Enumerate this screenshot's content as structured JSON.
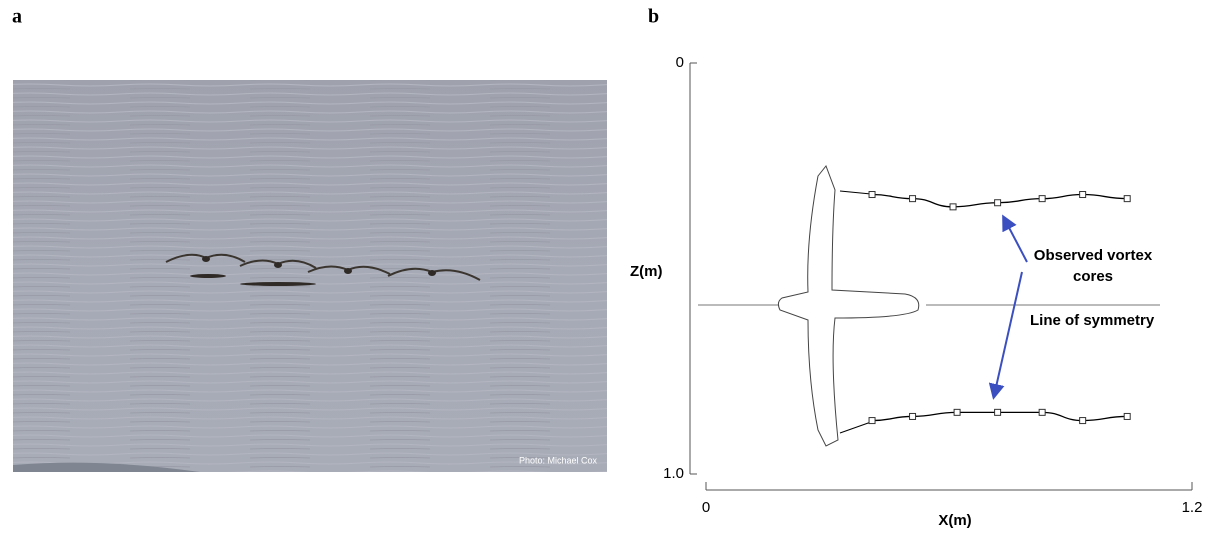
{
  "panel_labels": {
    "a": "a",
    "b": "b"
  },
  "photo_credit": "Photo: Michael Cox",
  "chart_data": {
    "type": "scatter",
    "xlabel": "X(m)",
    "ylabel": "Z(m)",
    "xlim": [
      0,
      1.2
    ],
    "ylim": [
      0,
      1
    ],
    "y_inverted": true,
    "xticks": [
      0,
      1.2
    ],
    "yticks": [
      0,
      {
        "value": 1,
        "label": "1.0"
      }
    ],
    "annotations": [
      "Observed vortex cores",
      "Line of symmetry"
    ],
    "series": [
      {
        "x": [
          0.41,
          0.51,
          0.61,
          0.72,
          0.83,
          0.93,
          1.04
        ],
        "values": [
          0.32,
          0.33,
          0.35,
          0.34,
          0.33,
          0.32,
          0.33
        ]
      },
      {
        "x": [
          0.41,
          0.51,
          0.62,
          0.72,
          0.83,
          0.93,
          1.04
        ],
        "values": [
          0.87,
          0.86,
          0.85,
          0.85,
          0.85,
          0.87,
          0.86
        ]
      }
    ]
  }
}
